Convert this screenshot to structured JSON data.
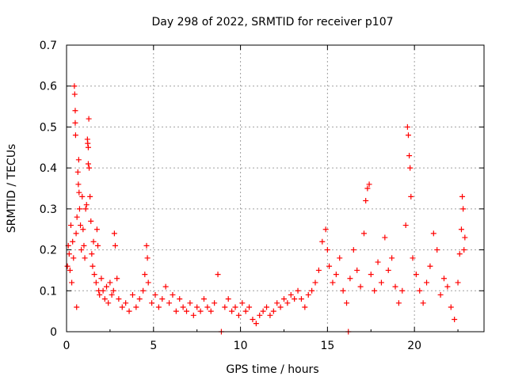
{
  "chart_data": {
    "type": "scatter",
    "title": "Day 298 of 2022, SRMTID for receiver p107",
    "xlabel": "GPS time / hours",
    "ylabel": "SRMTID / TECUs",
    "xlim": [
      0,
      24
    ],
    "ylim": [
      0,
      0.7
    ],
    "x_ticks": [
      0,
      5,
      10,
      15,
      20
    ],
    "x_tick_labels": [
      "0",
      "5",
      "10",
      "15",
      "20"
    ],
    "y_ticks": [
      0,
      0.1,
      0.2,
      0.3,
      0.4,
      0.5,
      0.6,
      0.7
    ],
    "y_tick_labels": [
      "0",
      "0.1",
      "0.2",
      "0.3",
      "0.4",
      "0.5",
      "0.6",
      "0.7"
    ],
    "grid": true,
    "marker": "+",
    "color": "#ff0000",
    "series": [
      {
        "name": "SRMTID",
        "points": [
          [
            0.05,
            0.16
          ],
          [
            0.1,
            0.21
          ],
          [
            0.15,
            0.19
          ],
          [
            0.2,
            0.15
          ],
          [
            0.25,
            0.26
          ],
          [
            0.3,
            0.12
          ],
          [
            0.35,
            0.22
          ],
          [
            0.4,
            0.18
          ],
          [
            0.45,
            0.6
          ],
          [
            0.47,
            0.58
          ],
          [
            0.5,
            0.54
          ],
          [
            0.5,
            0.51
          ],
          [
            0.52,
            0.48
          ],
          [
            0.55,
            0.24
          ],
          [
            0.58,
            0.06
          ],
          [
            0.6,
            0.28
          ],
          [
            0.65,
            0.39
          ],
          [
            0.68,
            0.36
          ],
          [
            0.7,
            0.42
          ],
          [
            0.72,
            0.34
          ],
          [
            0.75,
            0.3
          ],
          [
            0.8,
            0.26
          ],
          [
            0.85,
            0.2
          ],
          [
            0.9,
            0.33
          ],
          [
            0.95,
            0.25
          ],
          [
            1.0,
            0.21
          ],
          [
            1.05,
            0.18
          ],
          [
            1.1,
            0.3
          ],
          [
            1.15,
            0.31
          ],
          [
            1.2,
            0.47
          ],
          [
            1.22,
            0.46
          ],
          [
            1.25,
            0.45
          ],
          [
            1.25,
            0.41
          ],
          [
            1.28,
            0.52
          ],
          [
            1.3,
            0.4
          ],
          [
            1.35,
            0.33
          ],
          [
            1.4,
            0.27
          ],
          [
            1.45,
            0.19
          ],
          [
            1.5,
            0.16
          ],
          [
            1.55,
            0.22
          ],
          [
            1.6,
            0.14
          ],
          [
            1.7,
            0.12
          ],
          [
            1.75,
            0.25
          ],
          [
            1.8,
            0.21
          ],
          [
            1.85,
            0.1
          ],
          [
            1.9,
            0.09
          ],
          [
            2.0,
            0.13
          ],
          [
            2.1,
            0.1
          ],
          [
            2.2,
            0.08
          ],
          [
            2.3,
            0.11
          ],
          [
            2.4,
            0.07
          ],
          [
            2.5,
            0.12
          ],
          [
            2.6,
            0.09
          ],
          [
            2.7,
            0.1
          ],
          [
            2.75,
            0.24
          ],
          [
            2.8,
            0.21
          ],
          [
            2.9,
            0.13
          ],
          [
            3.0,
            0.08
          ],
          [
            3.2,
            0.06
          ],
          [
            3.4,
            0.07
          ],
          [
            3.6,
            0.05
          ],
          [
            3.8,
            0.09
          ],
          [
            4.0,
            0.06
          ],
          [
            4.2,
            0.08
          ],
          [
            4.4,
            0.1
          ],
          [
            4.5,
            0.14
          ],
          [
            4.6,
            0.21
          ],
          [
            4.65,
            0.18
          ],
          [
            4.7,
            0.12
          ],
          [
            4.9,
            0.07
          ],
          [
            5.1,
            0.09
          ],
          [
            5.3,
            0.06
          ],
          [
            5.5,
            0.08
          ],
          [
            5.7,
            0.11
          ],
          [
            5.9,
            0.07
          ],
          [
            6.1,
            0.09
          ],
          [
            6.3,
            0.05
          ],
          [
            6.5,
            0.08
          ],
          [
            6.7,
            0.06
          ],
          [
            6.9,
            0.05
          ],
          [
            7.1,
            0.07
          ],
          [
            7.3,
            0.04
          ],
          [
            7.5,
            0.06
          ],
          [
            7.7,
            0.05
          ],
          [
            7.9,
            0.08
          ],
          [
            8.1,
            0.06
          ],
          [
            8.3,
            0.05
          ],
          [
            8.5,
            0.07
          ],
          [
            8.7,
            0.14
          ],
          [
            8.9,
            0.0
          ],
          [
            9.1,
            0.06
          ],
          [
            9.3,
            0.08
          ],
          [
            9.5,
            0.05
          ],
          [
            9.7,
            0.06
          ],
          [
            9.9,
            0.04
          ],
          [
            10.1,
            0.07
          ],
          [
            10.3,
            0.05
          ],
          [
            10.5,
            0.06
          ],
          [
            10.7,
            0.03
          ],
          [
            10.9,
            0.02
          ],
          [
            11.1,
            0.04
          ],
          [
            11.3,
            0.05
          ],
          [
            11.5,
            0.06
          ],
          [
            11.7,
            0.04
          ],
          [
            11.9,
            0.05
          ],
          [
            12.1,
            0.07
          ],
          [
            12.3,
            0.06
          ],
          [
            12.5,
            0.08
          ],
          [
            12.7,
            0.07
          ],
          [
            12.9,
            0.09
          ],
          [
            13.1,
            0.08
          ],
          [
            13.3,
            0.1
          ],
          [
            13.5,
            0.08
          ],
          [
            13.7,
            0.06
          ],
          [
            13.9,
            0.09
          ],
          [
            14.1,
            0.1
          ],
          [
            14.3,
            0.12
          ],
          [
            14.5,
            0.15
          ],
          [
            14.7,
            0.22
          ],
          [
            14.9,
            0.25
          ],
          [
            15.0,
            0.2
          ],
          [
            15.1,
            0.16
          ],
          [
            15.3,
            0.12
          ],
          [
            15.5,
            0.14
          ],
          [
            15.7,
            0.18
          ],
          [
            15.9,
            0.1
          ],
          [
            16.1,
            0.07
          ],
          [
            16.2,
            0.0
          ],
          [
            16.3,
            0.13
          ],
          [
            16.5,
            0.2
          ],
          [
            16.7,
            0.15
          ],
          [
            16.9,
            0.11
          ],
          [
            17.1,
            0.24
          ],
          [
            17.2,
            0.32
          ],
          [
            17.3,
            0.35
          ],
          [
            17.4,
            0.36
          ],
          [
            17.5,
            0.14
          ],
          [
            17.7,
            0.1
          ],
          [
            17.9,
            0.17
          ],
          [
            18.1,
            0.12
          ],
          [
            18.3,
            0.23
          ],
          [
            18.5,
            0.15
          ],
          [
            18.7,
            0.18
          ],
          [
            18.9,
            0.11
          ],
          [
            19.1,
            0.07
          ],
          [
            19.3,
            0.1
          ],
          [
            19.5,
            0.26
          ],
          [
            19.6,
            0.5
          ],
          [
            19.65,
            0.48
          ],
          [
            19.7,
            0.43
          ],
          [
            19.75,
            0.4
          ],
          [
            19.8,
            0.33
          ],
          [
            19.9,
            0.18
          ],
          [
            20.1,
            0.14
          ],
          [
            20.3,
            0.1
          ],
          [
            20.5,
            0.07
          ],
          [
            20.7,
            0.12
          ],
          [
            20.9,
            0.16
          ],
          [
            21.1,
            0.24
          ],
          [
            21.3,
            0.2
          ],
          [
            21.5,
            0.09
          ],
          [
            21.7,
            0.13
          ],
          [
            21.9,
            0.11
          ],
          [
            22.1,
            0.06
          ],
          [
            22.3,
            0.03
          ],
          [
            22.5,
            0.12
          ],
          [
            22.6,
            0.19
          ],
          [
            22.7,
            0.25
          ],
          [
            22.75,
            0.33
          ],
          [
            22.8,
            0.3
          ],
          [
            22.85,
            0.2
          ],
          [
            22.9,
            0.23
          ]
        ]
      }
    ]
  }
}
